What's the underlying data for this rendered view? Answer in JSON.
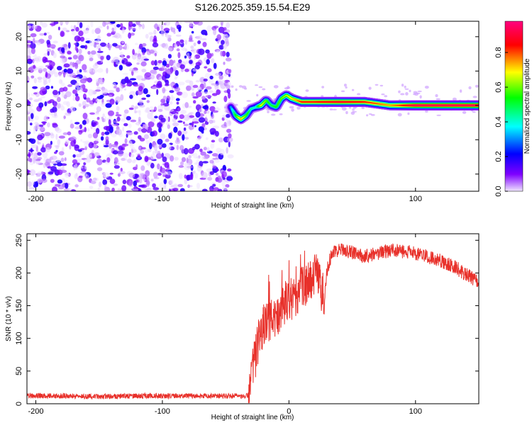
{
  "chart_data": [
    {
      "type": "heatmap",
      "title": "S126.2025.359.15.54.E29",
      "xlabel": "Height of straight line (km)",
      "ylabel": "Frequency (Hz)",
      "xlim": [
        -207,
        150
      ],
      "ylim": [
        -25,
        24.5
      ],
      "xticks": [
        -200,
        -100,
        0,
        100
      ],
      "yticks": [
        -20,
        -10,
        0,
        10,
        20
      ],
      "noise_region_x": [
        -207,
        -46
      ],
      "signal_ridge": {
        "x": [
          -46,
          -42,
          -38,
          -34,
          -30,
          -26,
          -22,
          -18,
          -14,
          -10,
          -6,
          -2,
          2,
          6,
          10,
          20,
          40,
          60,
          80,
          100,
          120,
          150
        ],
        "freq": [
          -0.5,
          -3,
          -4,
          -3,
          -1,
          -0.5,
          0,
          1.5,
          0,
          -0.5,
          2,
          3,
          2,
          1.5,
          1,
          1,
          1,
          1,
          0,
          0,
          0,
          0
        ],
        "amplitude": [
          0.3,
          0.55,
          0.75,
          0.6,
          0.45,
          0.4,
          0.7,
          0.6,
          0.5,
          0.55,
          0.6,
          0.65,
          0.7,
          0.75,
          0.85,
          0.85,
          0.9,
          0.85,
          0.75,
          0.95,
          0.95,
          0.95
        ]
      },
      "colorbar": {
        "label": "Normalized spectral amplitude",
        "range": [
          0,
          0.98
        ],
        "ticks": [
          "0.0",
          "0.2",
          "0.4",
          "0.6",
          "0.8"
        ],
        "colors": [
          "#f0e6ff",
          "#7f00ff",
          "#0000ff",
          "#00ffff",
          "#00ff00",
          "#ffff00",
          "#ff0000",
          "#ff007f"
        ]
      }
    },
    {
      "type": "line",
      "xlabel": "Height of straight line (km)",
      "ylabel": "SNR (10 * v/v)",
      "xlim": [
        -207,
        150
      ],
      "ylim": [
        0,
        260
      ],
      "xticks": [
        -200,
        -100,
        0,
        100
      ],
      "yticks": [
        0,
        50,
        100,
        150,
        200,
        250
      ],
      "color": "#e8302a",
      "series": [
        {
          "name": "SNR",
          "x": [
            -207,
            -180,
            -150,
            -120,
            -90,
            -60,
            -35,
            -31,
            -30,
            -28,
            -26,
            -22,
            -18,
            -14,
            -10,
            -6,
            -2,
            0,
            2,
            6,
            10,
            14,
            18,
            22,
            26,
            28,
            30,
            34,
            40,
            50,
            60,
            70,
            80,
            90,
            100,
            110,
            120,
            130,
            140,
            150
          ],
          "values": [
            12,
            12,
            11,
            12,
            12,
            12,
            12,
            14,
            40,
            55,
            80,
            110,
            125,
            130,
            125,
            150,
            160,
            165,
            150,
            170,
            175,
            180,
            185,
            205,
            170,
            160,
            205,
            230,
            235,
            232,
            225,
            230,
            235,
            232,
            230,
            225,
            218,
            210,
            198,
            185
          ]
        }
      ]
    }
  ]
}
